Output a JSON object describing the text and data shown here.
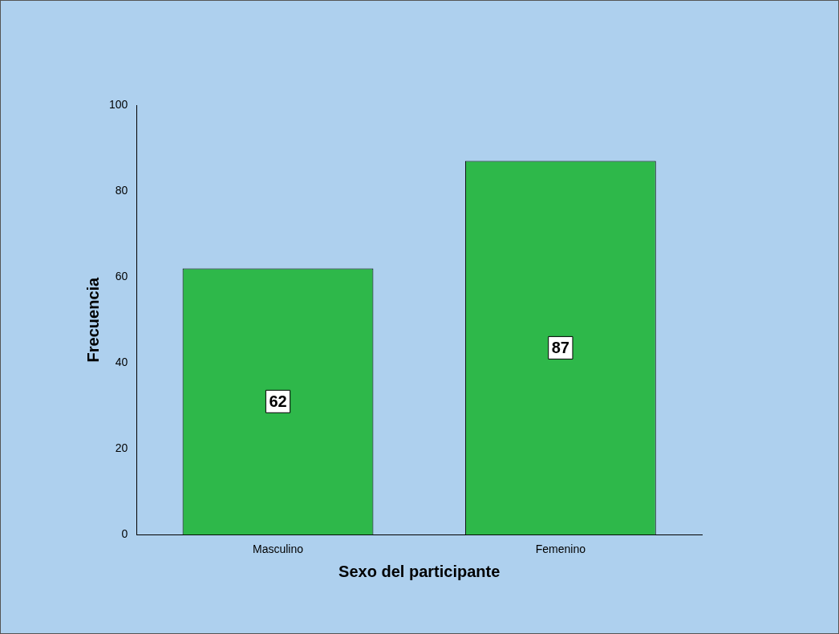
{
  "chart_data": {
    "type": "bar",
    "xlabel": "Sexo del participante",
    "ylabel": "Frecuencia",
    "categories": [
      "Masculino",
      "Femenino"
    ],
    "values": [
      62,
      87
    ],
    "color": "#2eb84a",
    "ylim": [
      0,
      100
    ],
    "yticks": [
      0,
      20,
      40,
      60,
      80,
      100
    ],
    "grid": false,
    "legend": false,
    "data_labels": true
  }
}
